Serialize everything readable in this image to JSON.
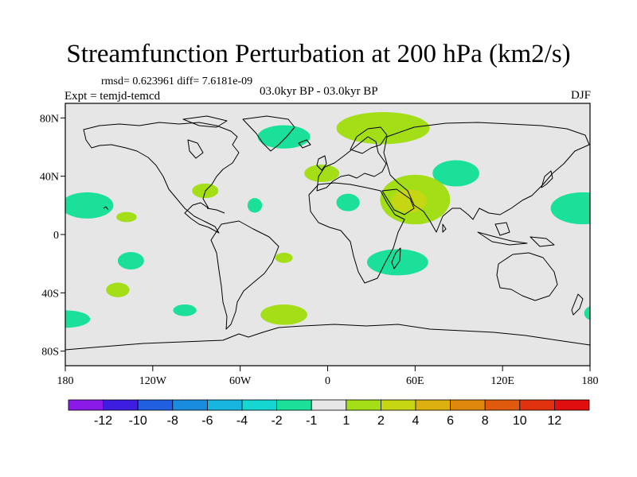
{
  "chart_data": {
    "type": "heatmap",
    "title": "Streamfunction Perturbation at 200 hPa (km2/s)",
    "stats": "rmsd= 0.623961 diff= 7.6181e-09",
    "left_label": "Expt = temjd-temcd",
    "center_label": "03.0kyr BP - 03.0kyr BP",
    "right_label": "DJF",
    "x_ticks": [
      "180",
      "120W",
      "60W",
      "0",
      "60E",
      "120E",
      "180"
    ],
    "y_ticks": [
      "80N",
      "40N",
      "0",
      "40S",
      "80S"
    ],
    "lon_range": [
      -180,
      180
    ],
    "lat_range": [
      -90,
      90
    ],
    "colorbar": {
      "colors": [
        "#8b1ae8",
        "#3d1ee0",
        "#1f5fe0",
        "#1a8ce0",
        "#16b6e0",
        "#16d6d2",
        "#1ae09a",
        "#e6e6e6",
        "#a3de16",
        "#c6d612",
        "#dcb00e",
        "#e0880e",
        "#e05a0e",
        "#e0320e",
        "#e00e0e"
      ],
      "labels": [
        "-12",
        "-10",
        "-8",
        "-6",
        "-4",
        "-2",
        "-1",
        "1",
        "2",
        "4",
        "6",
        "8",
        "10",
        "12"
      ]
    },
    "regions": [
      {
        "name": "negative anomaly",
        "level": -1,
        "lon": -165,
        "lat": 20,
        "rx": 18,
        "ry": 9
      },
      {
        "name": "positive anomaly",
        "level": 1,
        "lon": -138,
        "lat": 12,
        "rx": 7,
        "ry": 3.5
      },
      {
        "name": "negative anomaly",
        "level": -1,
        "lon": -135,
        "lat": -18,
        "rx": 9,
        "ry": 6
      },
      {
        "name": "positive anomaly",
        "level": 1,
        "lon": -144,
        "lat": -38,
        "rx": 8,
        "ry": 5
      },
      {
        "name": "negative anomaly",
        "level": -1,
        "lon": -180,
        "lat": -58,
        "rx": 17,
        "ry": 6
      },
      {
        "name": "negative anomaly",
        "level": -1,
        "lon": -98,
        "lat": -52,
        "rx": 8,
        "ry": 4
      },
      {
        "name": "positive anomaly",
        "level": 1,
        "lon": -84,
        "lat": 30,
        "rx": 9,
        "ry": 5
      },
      {
        "name": "negative anomaly",
        "level": -1,
        "lon": -50,
        "lat": 20,
        "rx": 5,
        "ry": 5
      },
      {
        "name": "negative anomaly",
        "level": -1,
        "lon": -30,
        "lat": 67,
        "rx": 18,
        "ry": 8
      },
      {
        "name": "positive anomaly",
        "level": 1,
        "lon": -30,
        "lat": -55,
        "rx": 16,
        "ry": 7
      },
      {
        "name": "positive anomaly",
        "level": 1,
        "lon": -30,
        "lat": -16,
        "rx": 6,
        "ry": 3.5
      },
      {
        "name": "positive anomaly",
        "level": 1,
        "lon": -4,
        "lat": 42,
        "rx": 12,
        "ry": 6
      },
      {
        "name": "positive anomaly",
        "level": 1,
        "lon": 38,
        "lat": 73,
        "rx": 32,
        "ry": 11
      },
      {
        "name": "negative anomaly",
        "level": -1,
        "lon": 14,
        "lat": 22,
        "rx": 8,
        "ry": 6
      },
      {
        "name": "negative anomaly",
        "level": -1,
        "lon": 88,
        "lat": 42,
        "rx": 16,
        "ry": 9
      },
      {
        "name": "positive anomaly",
        "level": 1,
        "lon": 60,
        "lat": 24,
        "rx": 24,
        "ry": 17
      },
      {
        "name": "positive anomaly",
        "level": 2,
        "lon": 56,
        "lat": 23,
        "rx": 12,
        "ry": 8
      },
      {
        "name": "negative anomaly",
        "level": -1,
        "lon": 48,
        "lat": -19,
        "rx": 21,
        "ry": 9
      },
      {
        "name": "negative anomaly",
        "level": -1,
        "lon": 175,
        "lat": 18,
        "rx": 22,
        "ry": 11
      },
      {
        "name": "negative anomaly",
        "level": -1,
        "lon": 182,
        "lat": -54,
        "rx": 6,
        "ry": 5
      }
    ]
  }
}
